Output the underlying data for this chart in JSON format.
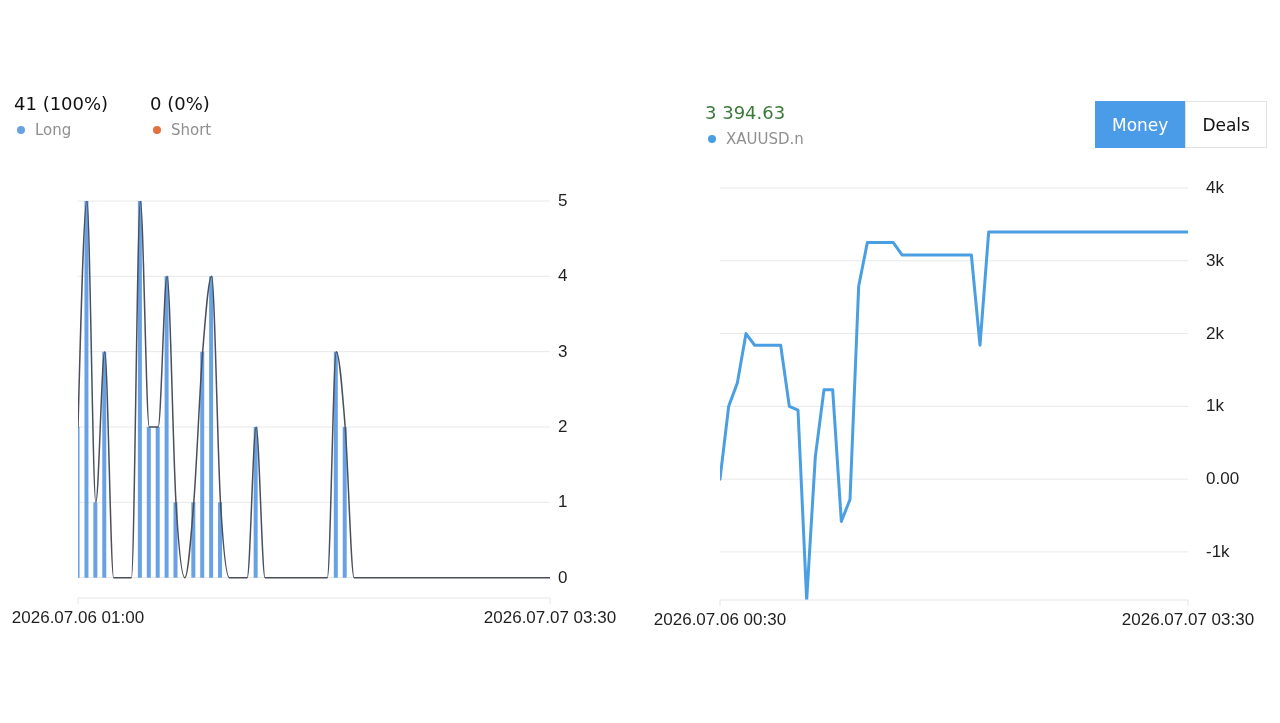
{
  "chart_data": [
    {
      "type": "bar",
      "stacked": true,
      "legend": "top left",
      "grid": "y",
      "annotations": [
        "41 (100%)",
        "0 (0%)"
      ],
      "x": [
        "2026-07-06T01:00",
        "2026-07-06T01:30",
        "2026-07-06T02:00",
        "2026-07-06T02:30",
        "2026-07-06T03:00",
        "2026-07-06T03:30",
        "2026-07-06T04:00",
        "2026-07-06T04:30",
        "2026-07-06T05:00",
        "2026-07-06T05:30",
        "2026-07-06T06:00",
        "2026-07-06T06:30",
        "2026-07-06T07:00",
        "2026-07-06T07:30",
        "2026-07-06T08:00",
        "2026-07-06T08:30",
        "2026-07-06T09:00",
        "2026-07-06T09:30",
        "2026-07-06T10:00",
        "2026-07-06T10:30",
        "2026-07-06T11:00",
        "2026-07-06T11:30",
        "2026-07-06T12:00",
        "2026-07-06T12:30",
        "2026-07-06T13:00",
        "2026-07-06T13:30",
        "2026-07-06T14:00",
        "2026-07-06T14:30",
        "2026-07-06T15:00",
        "2026-07-06T15:30",
        "2026-07-06T16:00",
        "2026-07-06T16:30",
        "2026-07-06T17:00",
        "2026-07-06T17:30",
        "2026-07-06T18:00",
        "2026-07-06T18:30",
        "2026-07-06T19:00",
        "2026-07-06T19:30",
        "2026-07-06T20:00",
        "2026-07-06T20:30",
        "2026-07-06T21:00",
        "2026-07-06T21:30",
        "2026-07-06T22:00",
        "2026-07-06T22:30",
        "2026-07-06T23:00",
        "2026-07-06T23:30",
        "2026-07-07T00:00",
        "2026-07-07T00:30",
        "2026-07-07T01:00",
        "2026-07-07T01:30",
        "2026-07-07T02:00",
        "2026-07-07T02:30",
        "2026-07-07T03:00",
        "2026-07-07T03:30"
      ],
      "series": [
        {
          "name": "Long",
          "color": "#68a2e4",
          "values": [
            2,
            5,
            1,
            3,
            0,
            0,
            0,
            5,
            2,
            2,
            4,
            1,
            0,
            1,
            3,
            4,
            1,
            0,
            0,
            0,
            2,
            0,
            0,
            0,
            0,
            0,
            0,
            0,
            0,
            3,
            2,
            0,
            0,
            0,
            0,
            0,
            0,
            0,
            0,
            0,
            0,
            0,
            0,
            0,
            0,
            0,
            0,
            0,
            0,
            0,
            0,
            0,
            0,
            0
          ]
        },
        {
          "name": "Short",
          "color": "#e4703e",
          "values": [
            0,
            0,
            0,
            0,
            0,
            0,
            0,
            0,
            0,
            0,
            0,
            0,
            0,
            0,
            0,
            0,
            0,
            0,
            0,
            0,
            0,
            0,
            0,
            0,
            0,
            0,
            0,
            0,
            0,
            0,
            0,
            0,
            0,
            0,
            0,
            0,
            0,
            0,
            0,
            0,
            0,
            0,
            0,
            0,
            0,
            0,
            0,
            0,
            0,
            0,
            0,
            0,
            0,
            0
          ]
        },
        {
          "type": "line",
          "color": "#4a4f5a",
          "values": [
            2,
            5,
            1,
            3,
            0,
            0,
            0,
            5,
            2,
            2,
            4,
            1,
            0,
            1,
            3,
            4,
            1,
            0,
            0,
            0,
            2,
            0,
            0,
            0,
            0,
            0,
            0,
            0,
            0,
            3,
            2,
            0,
            0,
            0,
            0,
            0,
            0,
            0,
            0,
            0,
            0,
            0,
            0,
            0,
            0,
            0,
            0,
            0,
            0,
            0,
            0,
            0,
            0,
            0
          ]
        }
      ],
      "xlim": [
        "2026-07-06T01:00",
        "2026-07-07T03:30"
      ],
      "xticks": [
        {
          "value": "2026-07-06T01:00",
          "label": "2026.07.06 01:00"
        },
        {
          "value": "2026-07-07T03:30",
          "label": "2026.07.07 03:30"
        }
      ],
      "ylim": [
        -0.27,
        5
      ],
      "yticks": [
        0,
        1,
        2,
        3,
        4,
        5
      ]
    },
    {
      "type": "line",
      "legend": "top left",
      "grid": "y",
      "annotations": [
        "3 394.63",
        "Money",
        "Deals"
      ],
      "x": [
        "2026-07-06T00:30",
        "2026-07-06T01:00",
        "2026-07-06T01:30",
        "2026-07-06T02:00",
        "2026-07-06T02:30",
        "2026-07-06T04:00",
        "2026-07-06T04:30",
        "2026-07-06T05:00",
        "2026-07-06T05:30",
        "2026-07-06T06:00",
        "2026-07-06T06:30",
        "2026-07-06T07:00",
        "2026-07-06T07:30",
        "2026-07-06T08:00",
        "2026-07-06T08:30",
        "2026-07-06T09:00",
        "2026-07-06T10:30",
        "2026-07-06T11:00",
        "2026-07-06T15:00",
        "2026-07-06T15:30",
        "2026-07-06T16:00",
        "2026-07-07T03:30"
      ],
      "series": [
        {
          "name": "XAUUSD.n",
          "color": "#4a9fe3",
          "values": [
            0,
            1000,
            1320,
            2000,
            1840,
            1840,
            1000,
            950,
            -1660,
            310,
            1230,
            1230,
            -580,
            -280,
            2650,
            3250,
            3250,
            3080,
            3080,
            1840,
            3394.63,
            3394.63
          ]
        }
      ],
      "xlim": [
        "2026-07-06T00:30",
        "2026-07-07T03:30"
      ],
      "xticks": [
        {
          "value": "2026-07-06T00:30",
          "label": "2026.07.06 00:30"
        },
        {
          "value": "2026-07-07T03:30",
          "label": "2026.07.07 03:30"
        }
      ],
      "ylim": [
        -1660,
        4000
      ],
      "yticks": [
        {
          "value": -1000,
          "label": "-1k"
        },
        {
          "value": 0,
          "label": "0.00"
        },
        {
          "value": 1000,
          "label": "1k"
        },
        {
          "value": 2000,
          "label": "2k"
        },
        {
          "value": 3000,
          "label": "3k"
        },
        {
          "value": 4000,
          "label": "4k"
        }
      ]
    }
  ]
}
